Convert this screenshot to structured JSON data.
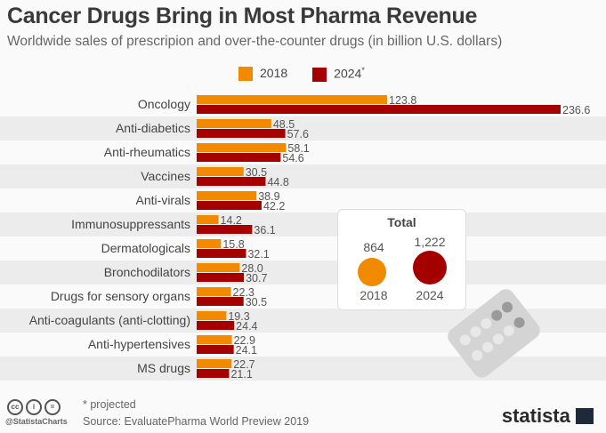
{
  "chart_data": {
    "type": "bar",
    "orientation": "horizontal",
    "title": "Cancer Drugs Bring in Most Pharma Revenue",
    "subtitle": "Worldwide sales of prescripion and over-the-counter drugs (in billion U.S. dollars)",
    "categories": [
      "Oncology",
      "Anti-diabetics",
      "Anti-rheumatics",
      "Vaccines",
      "Anti-virals",
      "Immunosuppressants",
      "Dermatologicals",
      "Bronchodilators",
      "Drugs for sensory organs",
      "Anti-coagulants (anti-clotting)",
      "Anti-hypertensives",
      "MS drugs"
    ],
    "series": [
      {
        "name": "2018",
        "color": "#f28a00",
        "values": [
          123.8,
          48.5,
          58.1,
          30.5,
          38.9,
          14.2,
          15.8,
          28.0,
          22.3,
          19.3,
          22.9,
          22.7
        ]
      },
      {
        "name": "2024*",
        "color": "#a50000",
        "values": [
          236.6,
          57.6,
          54.6,
          44.8,
          42.2,
          36.1,
          32.1,
          30.7,
          30.5,
          24.4,
          24.1,
          21.1
        ]
      }
    ],
    "legend_position": "top",
    "grid": false
  },
  "legend": {
    "label_2018": "2018",
    "label_2024": "2024",
    "asterisk": "*"
  },
  "total": {
    "title": "Total",
    "v2018": "864",
    "v2024": "1,222",
    "y2018": "2018",
    "y2024": "2024"
  },
  "footer": {
    "note": "* projected",
    "source": "Source: EvaluatePharma World Preview 2019",
    "handle": "@StatistaCharts",
    "brand": "statista"
  }
}
